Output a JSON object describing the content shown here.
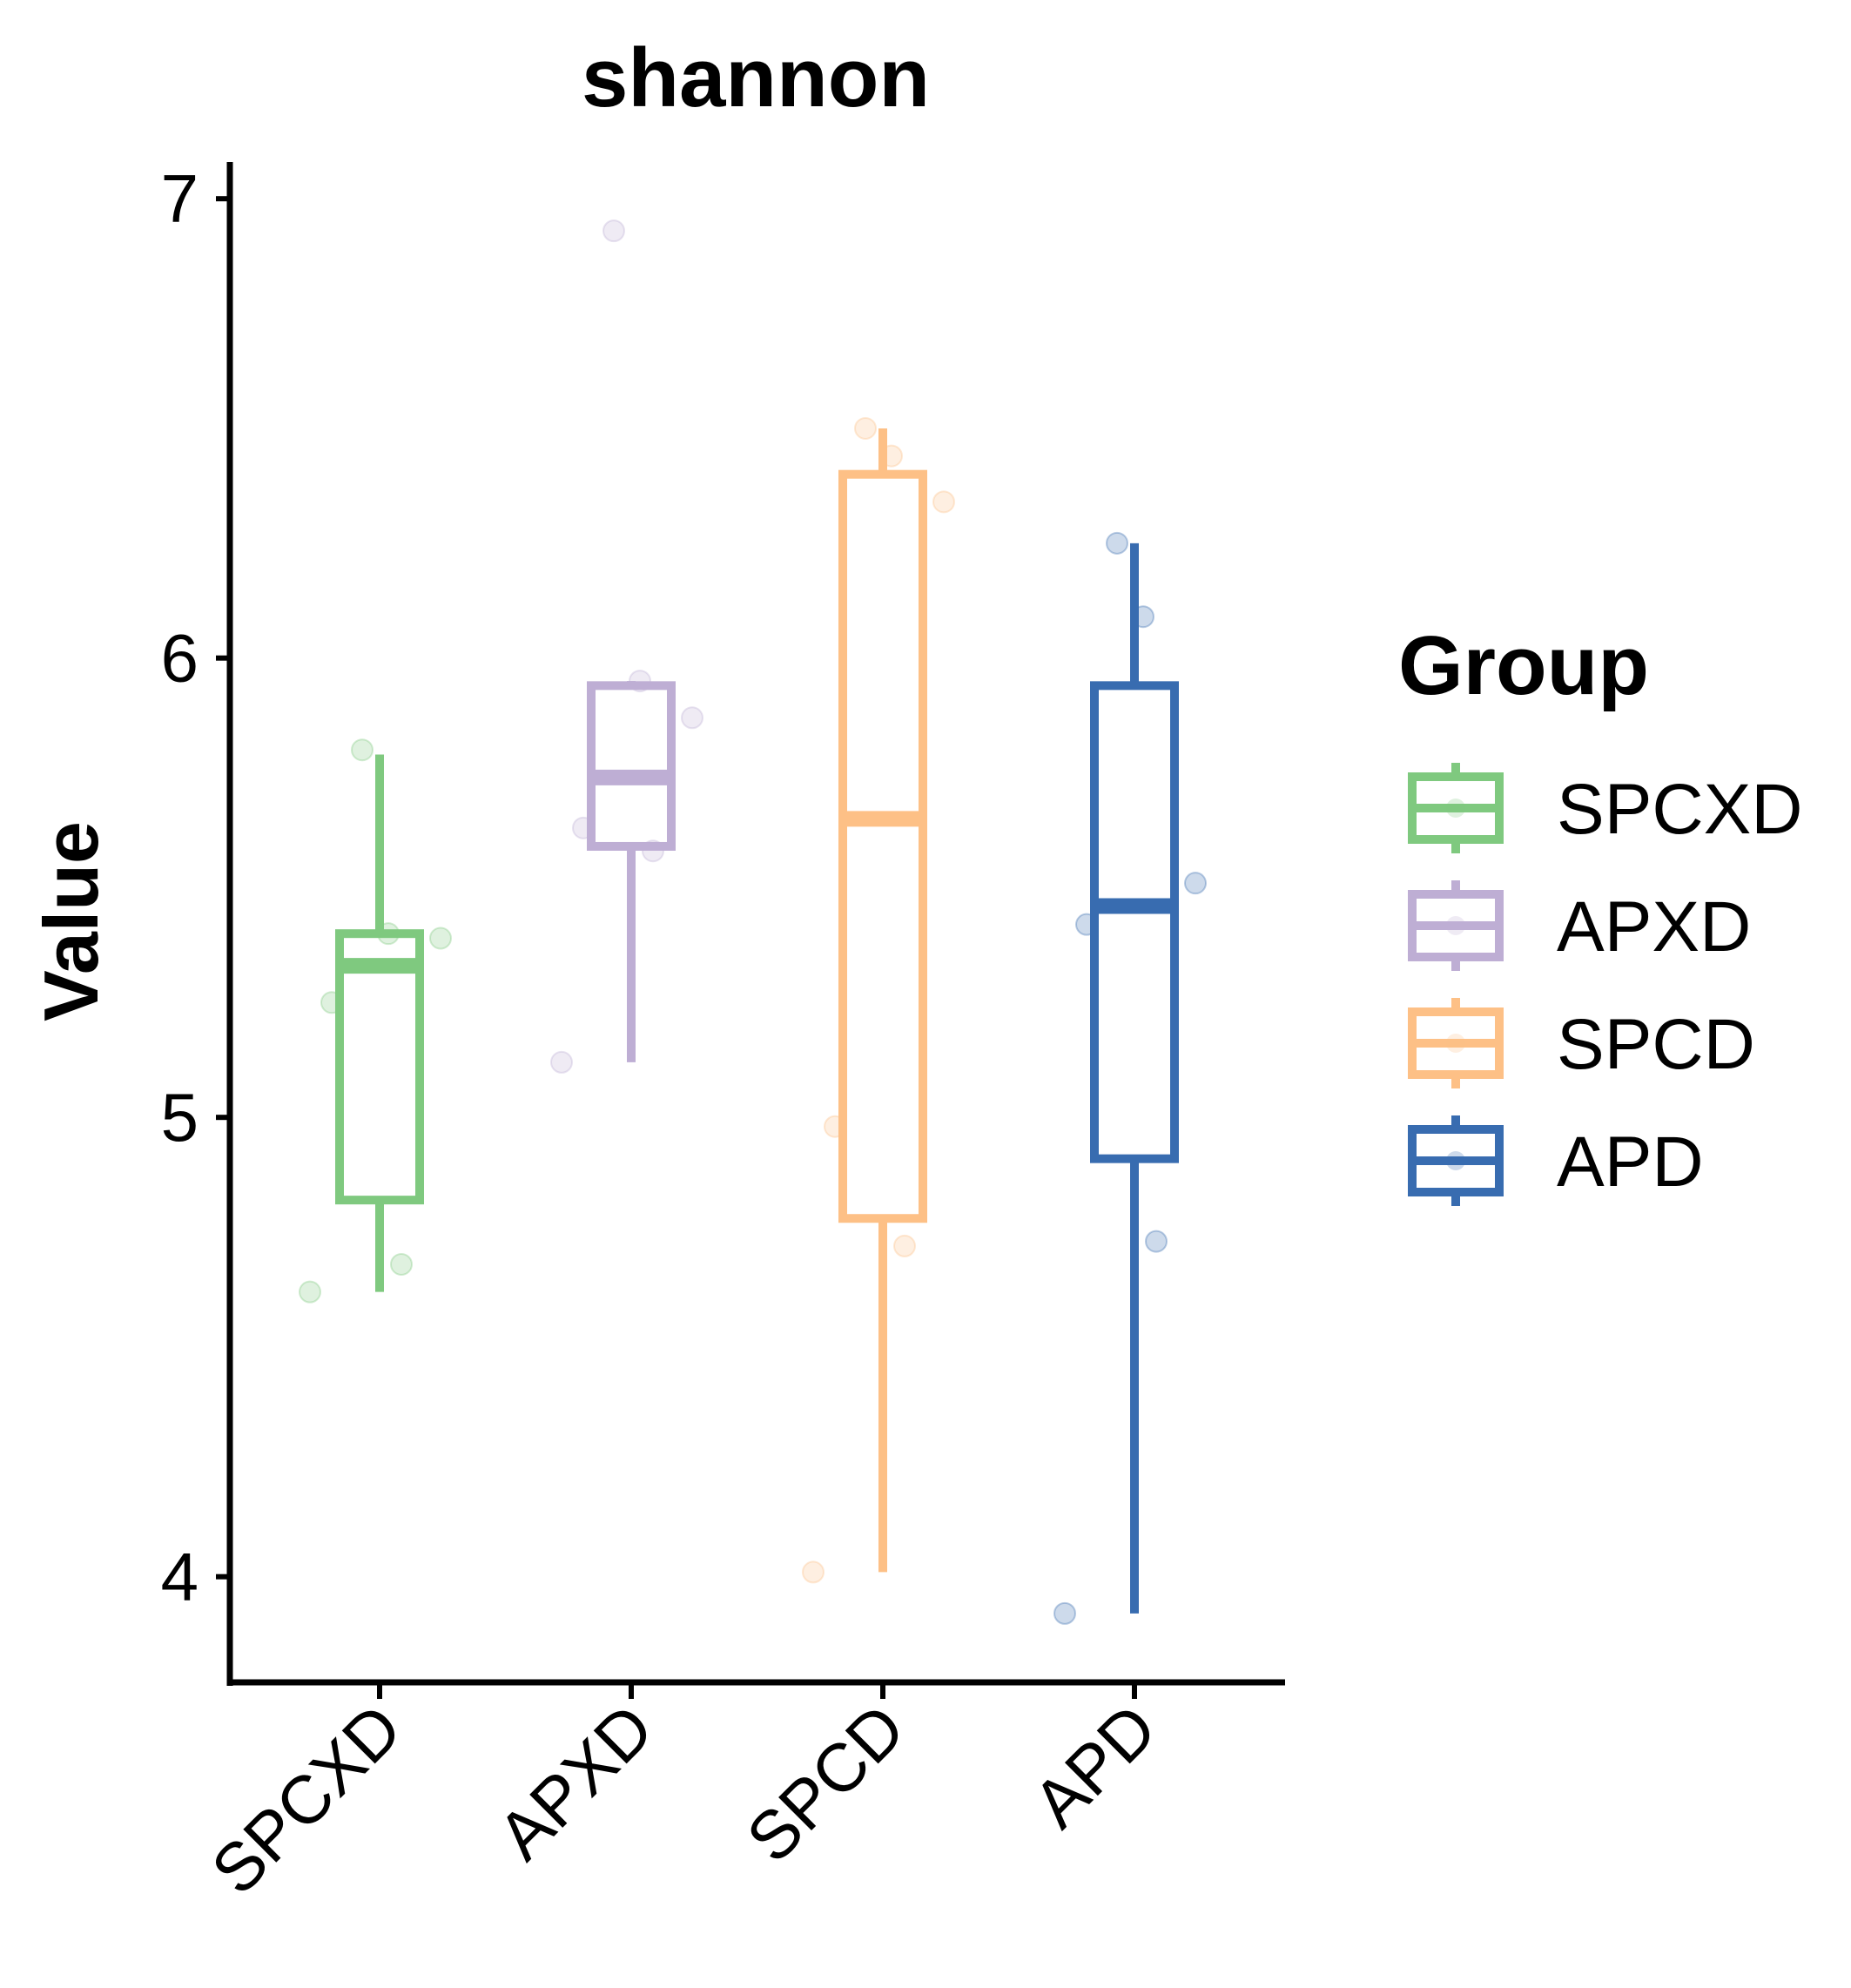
{
  "chart_data": {
    "type": "box",
    "title": "shannon",
    "xlabel": "",
    "ylabel": "Value",
    "ylim": [
      3.77,
      7.08
    ],
    "yticks": [
      4,
      5,
      6,
      7
    ],
    "grid": false,
    "legend": {
      "title": "Group",
      "position": "right"
    },
    "categories": [
      "SPCXD",
      "APXD",
      "SPCD",
      "APD"
    ],
    "series": [
      {
        "name": "SPCXD",
        "color": "#7fc97f",
        "whisker_low": 4.62,
        "q1": 4.82,
        "median": 5.33,
        "q3": 5.4,
        "whisker_high": 5.79,
        "points": [
          4.62,
          4.68,
          5.25,
          5.39,
          5.4,
          5.8
        ]
      },
      {
        "name": "APXD",
        "color": "#beaed4",
        "whisker_low": 5.12,
        "q1": 5.59,
        "median": 5.74,
        "q3": 5.94,
        "whisker_high": 5.95,
        "points": [
          5.12,
          5.58,
          5.63,
          5.87,
          5.95,
          6.93
        ]
      },
      {
        "name": "SPCD",
        "color": "#fdc086",
        "whisker_low": 4.01,
        "q1": 4.78,
        "median": 5.65,
        "q3": 6.4,
        "whisker_high": 6.5,
        "points": [
          4.01,
          4.72,
          4.98,
          6.34,
          6.44,
          6.5
        ]
      },
      {
        "name": "APD",
        "color": "#386cb0",
        "whisker_low": 3.92,
        "q1": 4.91,
        "median": 5.46,
        "q3": 5.94,
        "whisker_high": 6.25,
        "points": [
          3.92,
          4.73,
          5.42,
          5.51,
          6.09,
          6.25
        ]
      }
    ]
  }
}
